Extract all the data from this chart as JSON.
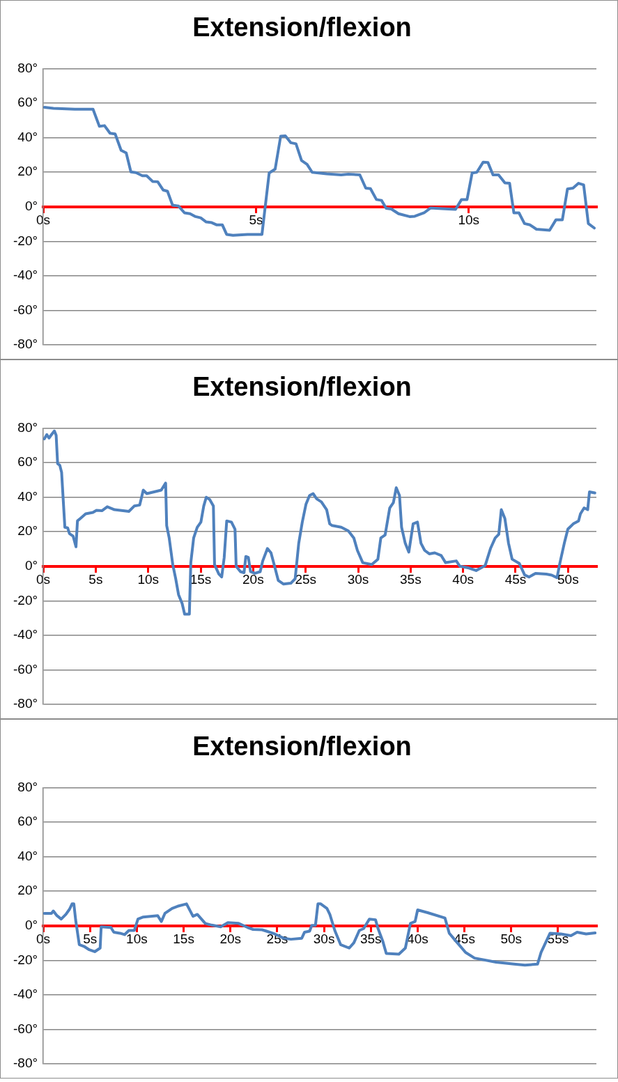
{
  "chart_data": [
    {
      "type": "line",
      "title": "Extension/flexion",
      "color": "#4f81bd",
      "marker": "none",
      "grid": "y",
      "xlim": [
        0,
        13
      ],
      "ylim": [
        -80,
        80
      ],
      "xticks": [
        {
          "value": 0,
          "label": "0s"
        },
        {
          "value": 5,
          "label": "5s"
        },
        {
          "value": 10,
          "label": "10s"
        }
      ],
      "yticks": [
        {
          "value": -80,
          "label": "-80°"
        },
        {
          "value": -60,
          "label": "-60°"
        },
        {
          "value": -40,
          "label": "-40°"
        },
        {
          "value": -20,
          "label": "-20°"
        },
        {
          "value": 0,
          "label": "0°"
        },
        {
          "value": 20,
          "label": "20°"
        },
        {
          "value": 40,
          "label": "40°"
        },
        {
          "value": 60,
          "label": "60°"
        },
        {
          "value": 80,
          "label": "80°"
        }
      ],
      "x": [
        0.03,
        0.24,
        0.74,
        1.17,
        1.32,
        1.44,
        1.57,
        1.69,
        1.83,
        1.95,
        2.06,
        2.18,
        2.33,
        2.43,
        2.57,
        2.69,
        2.82,
        2.92,
        3.04,
        3.18,
        3.32,
        3.45,
        3.58,
        3.7,
        3.83,
        3.96,
        4.08,
        4.21,
        4.31,
        4.46,
        4.8,
        5.14,
        5.31,
        5.45,
        5.58,
        5.69,
        5.82,
        5.94,
        6.07,
        6.2,
        6.32,
        6.66,
        7.0,
        7.17,
        7.44,
        7.58,
        7.69,
        7.83,
        7.95,
        8.06,
        8.18,
        8.35,
        8.61,
        8.73,
        8.95,
        9.1,
        9.37,
        9.69,
        9.83,
        9.96,
        10.08,
        10.19,
        10.34,
        10.45,
        10.57,
        10.7,
        10.85,
        10.96,
        11.06,
        11.18,
        11.31,
        11.44,
        11.59,
        11.9,
        12.05,
        12.2,
        12.32,
        12.45,
        12.58,
        12.7,
        12.81,
        12.95
      ],
      "values": [
        57.6,
        57,
        56.5,
        56.5,
        46.6,
        47,
        42.6,
        42.2,
        32.7,
        31.2,
        20.2,
        19.8,
        18,
        18,
        14.7,
        14.5,
        9.7,
        9,
        0.9,
        0.4,
        -3.5,
        -4,
        -5.7,
        -6.4,
        -8.8,
        -9.2,
        -10.5,
        -10.5,
        -16,
        -16.5,
        -16,
        -16,
        19.6,
        21.8,
        40.9,
        41.1,
        37.1,
        36.5,
        26.8,
        24.6,
        20,
        19.1,
        18.5,
        18.9,
        18.5,
        10.8,
        10.5,
        4.2,
        3.7,
        -0.9,
        -1.3,
        -4,
        -5.7,
        -5.5,
        -3.5,
        -0.7,
        -1.1,
        -1.5,
        4.2,
        4.2,
        19.6,
        20,
        25.9,
        25.7,
        18.5,
        18.5,
        13.8,
        13.6,
        -3.5,
        -3.5,
        -9.7,
        -10.5,
        -13,
        -13.6,
        -7.5,
        -7.5,
        10.3,
        10.8,
        13.6,
        12.7,
        -9.7,
        -12.3
      ]
    },
    {
      "type": "line",
      "title": "Extension/flexion",
      "color": "#4f81bd",
      "marker": "none",
      "grid": "y",
      "xlim": [
        0,
        52.7
      ],
      "ylim": [
        -80,
        80
      ],
      "xticks": [
        {
          "value": 0,
          "label": "0s"
        },
        {
          "value": 5,
          "label": "5s"
        },
        {
          "value": 10,
          "label": "10s"
        },
        {
          "value": 15,
          "label": "15s"
        },
        {
          "value": 20,
          "label": "20s"
        },
        {
          "value": 25,
          "label": "25s"
        },
        {
          "value": 30,
          "label": "30s"
        },
        {
          "value": 35,
          "label": "35s"
        },
        {
          "value": 40,
          "label": "40s"
        },
        {
          "value": 45,
          "label": "45s"
        },
        {
          "value": 50,
          "label": "50s"
        }
      ],
      "yticks": [
        {
          "value": -80,
          "label": "-80°"
        },
        {
          "value": -60,
          "label": "-60°"
        },
        {
          "value": -40,
          "label": "-40°"
        },
        {
          "value": -20,
          "label": "-20°"
        },
        {
          "value": 0,
          "label": "0°"
        },
        {
          "value": 20,
          "label": "20°"
        },
        {
          "value": 40,
          "label": "40°"
        },
        {
          "value": 60,
          "label": "60°"
        },
        {
          "value": 80,
          "label": "80°"
        }
      ],
      "x": [
        0.1,
        0.34,
        0.55,
        0.79,
        1.06,
        1.23,
        1.37,
        1.58,
        1.75,
        1.92,
        2.06,
        2.33,
        2.5,
        2.85,
        3.12,
        3.26,
        3.53,
        4.04,
        4.73,
        5.07,
        5.59,
        6.1,
        6.79,
        8.16,
        8.67,
        9.19,
        9.53,
        9.87,
        10.56,
        11.24,
        11.66,
        11.76,
        12.0,
        12.34,
        12.62,
        12.89,
        13.23,
        13.47,
        13.92,
        14.06,
        14.33,
        14.67,
        15.02,
        15.29,
        15.53,
        15.87,
        16.21,
        16.32,
        16.73,
        17.0,
        17.24,
        17.48,
        17.93,
        18.27,
        18.38,
        18.79,
        19.13,
        19.3,
        19.54,
        19.75,
        20.16,
        20.67,
        20.91,
        21.36,
        21.7,
        22.04,
        22.39,
        22.9,
        23.59,
        24.0,
        24.34,
        24.68,
        25.03,
        25.37,
        25.71,
        26.06,
        26.5,
        27.0,
        27.29,
        27.53,
        28.39,
        29.07,
        29.59,
        29.93,
        30.44,
        31.3,
        31.88,
        32.16,
        32.57,
        33.01,
        33.36,
        33.63,
        33.94,
        34.14,
        34.49,
        34.83,
        35.24,
        35.65,
        35.99,
        36.34,
        36.78,
        37.3,
        37.92,
        38.33,
        39.35,
        39.7,
        40.56,
        41.24,
        42.1,
        42.61,
        43.06,
        43.4,
        43.64,
        43.98,
        44.33,
        44.67,
        45.36,
        45.87,
        46.28,
        46.9,
        47.93,
        48.44,
        48.95,
        49.23,
        49.64,
        49.98,
        50.5,
        51.0,
        51.18,
        51.53,
        51.87,
        52.04,
        52.55
      ],
      "values": [
        73.8,
        76.3,
        74.3,
        76.3,
        78.4,
        75.9,
        59.5,
        58.5,
        54.4,
        36.9,
        22.6,
        22.2,
        18.9,
        17.4,
        11.3,
        26.3,
        27.7,
        30.4,
        31.2,
        32.4,
        32.2,
        34.5,
        32.8,
        31.8,
        34.9,
        35.5,
        44.1,
        42.1,
        43.1,
        44.1,
        48.2,
        23.6,
        16.4,
        1,
        -7.2,
        -16.4,
        -21.5,
        -27.7,
        -27.7,
        2.1,
        16.4,
        22.6,
        25.6,
        34.9,
        40,
        38.6,
        34.9,
        1,
        -4.5,
        -6.2,
        5.1,
        26.3,
        25.6,
        21.5,
        0,
        -3.1,
        -3.7,
        5.7,
        5.1,
        -3.1,
        -4.1,
        -3.1,
        3.1,
        10.3,
        7.8,
        0,
        -8.2,
        -10.3,
        -9.8,
        -7.2,
        13.3,
        25.6,
        35.9,
        41,
        42.1,
        39,
        37.3,
        32.8,
        24.6,
        23.6,
        22.6,
        20.5,
        16.4,
        9.2,
        2.1,
        1,
        4.1,
        16.4,
        18.1,
        33.8,
        36.9,
        45.5,
        41,
        22.6,
        13.3,
        8.2,
        24.6,
        25.6,
        13.3,
        9.2,
        7.2,
        7.8,
        6.2,
        2.1,
        3.1,
        0,
        -1,
        -2.5,
        0.4,
        10.3,
        16.4,
        18.5,
        32.8,
        27.7,
        13.3,
        4.1,
        1.6,
        -5.1,
        -6.2,
        -4.1,
        -4.5,
        -5.1,
        -6.6,
        2.1,
        13.3,
        21.5,
        24.6,
        26.3,
        30.4,
        33.8,
        32.8,
        43.1,
        42.5
      ]
    },
    {
      "type": "line",
      "title": "Extension/flexion",
      "color": "#4f81bd",
      "marker": "none",
      "grid": "y",
      "xlim": [
        0,
        59.1
      ],
      "ylim": [
        -80,
        80
      ],
      "xticks": [
        {
          "value": 0,
          "label": "0s"
        },
        {
          "value": 5,
          "label": "5s"
        },
        {
          "value": 10,
          "label": "10s"
        },
        {
          "value": 15,
          "label": "15s"
        },
        {
          "value": 20,
          "label": "20s"
        },
        {
          "value": 25,
          "label": "25s"
        },
        {
          "value": 30,
          "label": "30s"
        },
        {
          "value": 35,
          "label": "35s"
        },
        {
          "value": 40,
          "label": "40s"
        },
        {
          "value": 45,
          "label": "45s"
        },
        {
          "value": 50,
          "label": "50s"
        },
        {
          "value": 55,
          "label": "55s"
        }
      ],
      "yticks": [
        {
          "value": -80,
          "label": "-80°"
        },
        {
          "value": -60,
          "label": "-60°"
        },
        {
          "value": -40,
          "label": "-40°"
        },
        {
          "value": -20,
          "label": "-20°"
        },
        {
          "value": 0,
          "label": "0°"
        },
        {
          "value": 20,
          "label": "20°"
        },
        {
          "value": 40,
          "label": "40°"
        },
        {
          "value": 60,
          "label": "60°"
        },
        {
          "value": 80,
          "label": "80°"
        }
      ],
      "x": [
        0.12,
        0.88,
        1.08,
        1.46,
        1.92,
        2.42,
        2.81,
        3.08,
        3.27,
        3.46,
        3.85,
        4.35,
        4.92,
        5.5,
        6.08,
        6.19,
        7.23,
        7.54,
        8.19,
        8.69,
        9.15,
        9.73,
        10.12,
        10.69,
        12.23,
        12.62,
        13.0,
        13.77,
        14.35,
        15.31,
        16.0,
        16.46,
        17.31,
        18.0,
        18.96,
        19.73,
        20.88,
        21.85,
        22.42,
        23.38,
        23.85,
        24.73,
        25.69,
        26.46,
        27.62,
        27.92,
        28.46,
        28.69,
        29.08,
        29.35,
        29.65,
        30.31,
        30.62,
        31.15,
        31.77,
        32.69,
        33.19,
        33.77,
        34.23,
        34.85,
        35.5,
        35.77,
        36.27,
        36.65,
        38.0,
        38.69,
        39.23,
        39.73,
        40.0,
        41.08,
        42.92,
        43.38,
        44.08,
        45.12,
        46.08,
        48.38,
        50.31,
        51.46,
        52.81,
        53.19,
        54.15,
        55.31,
        56.38,
        57.04,
        58.0,
        58.96
      ],
      "values": [
        7.2,
        7.2,
        8.6,
        5.9,
        3.9,
        6.6,
        9.6,
        12.7,
        12.7,
        3.5,
        -10.9,
        -11.9,
        -13.9,
        -15,
        -12.9,
        -0.6,
        -1,
        -3.7,
        -4.3,
        -5.1,
        -2.7,
        -2.7,
        3.9,
        5.1,
        5.9,
        2.5,
        7.2,
        10.1,
        11.3,
        12.7,
        5.5,
        6.6,
        1.4,
        0.4,
        -0.6,
        1.8,
        1.4,
        -1,
        -2.1,
        -2.3,
        -3.1,
        -4.7,
        -7.2,
        -7.8,
        -7.2,
        -3.7,
        -3.1,
        0.2,
        0.2,
        12.7,
        12.7,
        10.1,
        6.6,
        -2.7,
        -10.9,
        -12.9,
        -9.8,
        -2.7,
        -1.6,
        3.9,
        3.5,
        -1.6,
        -8.8,
        -16,
        -16.4,
        -12.9,
        1.4,
        2.5,
        9.2,
        7.6,
        4.5,
        -4.3,
        -8.8,
        -15.4,
        -18.7,
        -21.1,
        -22.2,
        -22.8,
        -22.2,
        -15.4,
        -4.3,
        -4.7,
        -5.7,
        -3.7,
        -4.7,
        -4.1
      ]
    }
  ]
}
